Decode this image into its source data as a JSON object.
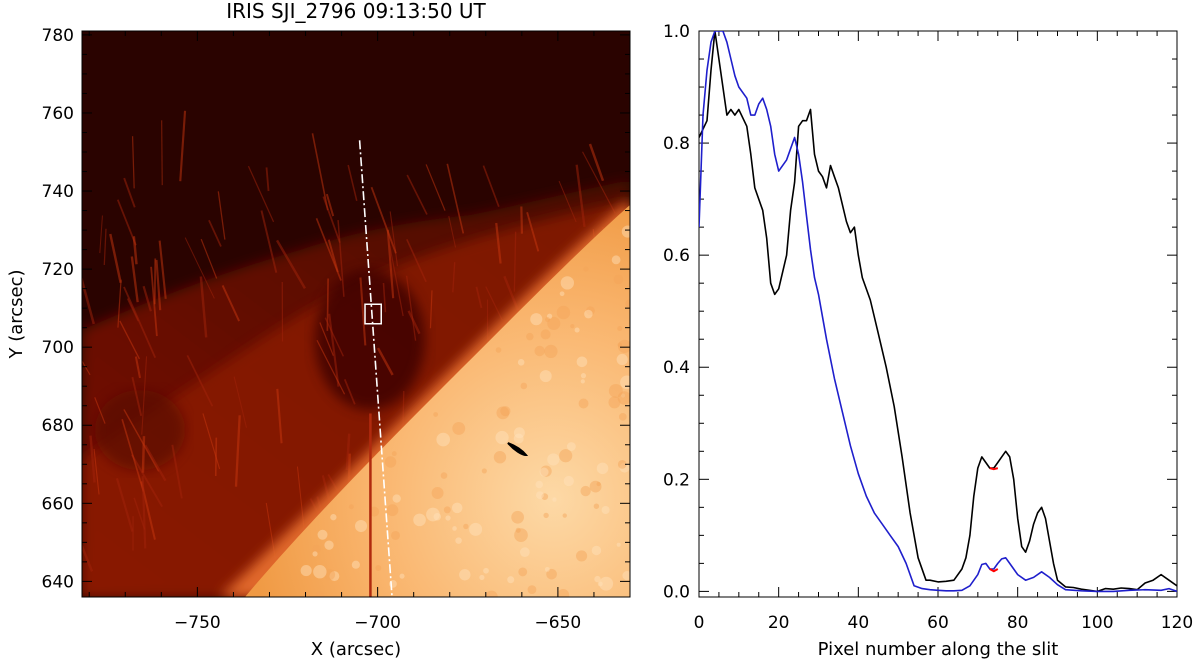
{
  "left_panel": {
    "title": "IRIS SJI_2796 09:13:50 UT",
    "xlabel": "X (arcsec)",
    "ylabel": "Y (arcsec)",
    "xlim": [
      -782,
      -630
    ],
    "ylim": [
      636,
      781
    ],
    "xticks": [
      -750,
      -700,
      -650
    ],
    "yticks": [
      640,
      660,
      680,
      700,
      720,
      740,
      760,
      780
    ],
    "slit": {
      "start": [
        -705,
        753
      ],
      "end": [
        -696,
        636
      ]
    },
    "box": {
      "x": [
        -703.5,
        -699
      ],
      "y": [
        706,
        711
      ]
    },
    "vertical_line_x": -702,
    "colors": {
      "background": "#2a0300",
      "limb": "#f7a35a",
      "slit": "#ffffff",
      "box": "#ffffff"
    }
  },
  "chart_data": {
    "type": "line",
    "title": "",
    "xlabel": "Pixel number along the slit",
    "ylabel": "",
    "xlim": [
      0,
      120
    ],
    "ylim": [
      -0.01,
      1.0
    ],
    "xticks": [
      0,
      20,
      40,
      60,
      80,
      100,
      120
    ],
    "yticks": [
      0.0,
      0.2,
      0.4,
      0.6,
      0.8,
      1.0
    ],
    "xtick_labels": [
      "0",
      "20",
      "40",
      "60",
      "80",
      "100",
      "120"
    ],
    "ytick_labels": [
      "0.0",
      "0.2",
      "0.4",
      "0.6",
      "0.8",
      "1.0"
    ],
    "series": [
      {
        "color": "#000000",
        "x": [
          0,
          2,
          3,
          4,
          5,
          6,
          7,
          8,
          9,
          10,
          12,
          13,
          14,
          16,
          17,
          18,
          19,
          20,
          22,
          23,
          24,
          25,
          26,
          27,
          28,
          29,
          30,
          31,
          32,
          33,
          34,
          35,
          36,
          37,
          38,
          39,
          40,
          41,
          43,
          45,
          47,
          49,
          51,
          53,
          55,
          57,
          58,
          60,
          62,
          64,
          66,
          67,
          68,
          69,
          70,
          71,
          72,
          73,
          74,
          75,
          76,
          77,
          78,
          79,
          80,
          81,
          82,
          83,
          84,
          85,
          86,
          87,
          88,
          89,
          90,
          92,
          94,
          96,
          98,
          100,
          102,
          104,
          106,
          108,
          110,
          112,
          114,
          116,
          118,
          120
        ],
        "y": [
          0.81,
          0.84,
          0.93,
          1.0,
          0.95,
          0.9,
          0.85,
          0.86,
          0.85,
          0.86,
          0.83,
          0.78,
          0.72,
          0.68,
          0.63,
          0.55,
          0.53,
          0.54,
          0.6,
          0.68,
          0.73,
          0.83,
          0.84,
          0.84,
          0.86,
          0.78,
          0.75,
          0.74,
          0.72,
          0.76,
          0.74,
          0.72,
          0.69,
          0.66,
          0.64,
          0.65,
          0.6,
          0.56,
          0.52,
          0.46,
          0.4,
          0.33,
          0.24,
          0.14,
          0.06,
          0.02,
          0.02,
          0.017,
          0.018,
          0.02,
          0.04,
          0.06,
          0.1,
          0.17,
          0.22,
          0.24,
          0.23,
          0.22,
          0.22,
          0.23,
          0.24,
          0.25,
          0.24,
          0.2,
          0.13,
          0.08,
          0.07,
          0.09,
          0.12,
          0.14,
          0.15,
          0.13,
          0.09,
          0.05,
          0.02,
          0.008,
          0.007,
          0.004,
          0.002,
          0.0,
          0.005,
          0.004,
          0.006,
          0.005,
          0.003,
          0.015,
          0.02,
          0.03,
          0.02,
          0.01
        ]
      },
      {
        "color": "#1f1fcc",
        "x": [
          0,
          1,
          2,
          3,
          4,
          5,
          6,
          7,
          8,
          9,
          10,
          12,
          13,
          14,
          15,
          16,
          17,
          18,
          19,
          20,
          22,
          23,
          24,
          25,
          26,
          27,
          28,
          29,
          30,
          31,
          32,
          34,
          36,
          38,
          40,
          42,
          44,
          46,
          48,
          50,
          52,
          54,
          56,
          58,
          60,
          62,
          64,
          66,
          68,
          70,
          71,
          72,
          73,
          74,
          75,
          76,
          77,
          78,
          79,
          80,
          82,
          84,
          86,
          88,
          90,
          92,
          96,
          100,
          104,
          108,
          112,
          116,
          118,
          120
        ],
        "y": [
          0.65,
          0.85,
          0.93,
          0.98,
          1.0,
          1.0,
          1.0,
          0.98,
          0.95,
          0.92,
          0.9,
          0.88,
          0.85,
          0.85,
          0.87,
          0.88,
          0.86,
          0.83,
          0.78,
          0.75,
          0.77,
          0.79,
          0.81,
          0.78,
          0.73,
          0.67,
          0.61,
          0.56,
          0.53,
          0.49,
          0.45,
          0.38,
          0.32,
          0.26,
          0.21,
          0.17,
          0.14,
          0.12,
          0.1,
          0.08,
          0.05,
          0.01,
          0.005,
          0.003,
          0.002,
          0.001,
          0.001,
          0.002,
          0.01,
          0.03,
          0.048,
          0.05,
          0.04,
          0.04,
          0.05,
          0.058,
          0.06,
          0.05,
          0.04,
          0.03,
          0.02,
          0.025,
          0.035,
          0.025,
          0.012,
          0.003,
          0.001,
          0.0,
          0.0,
          0.002,
          0.003,
          0.002,
          0.005,
          0.0
        ]
      },
      {
        "color": "#ff0000",
        "x": [
          73,
          74,
          75
        ],
        "y": [
          0.22,
          0.218,
          0.22
        ]
      },
      {
        "color": "#ff0000",
        "x": [
          73,
          74,
          75
        ],
        "y": [
          0.04,
          0.036,
          0.04
        ]
      }
    ]
  }
}
